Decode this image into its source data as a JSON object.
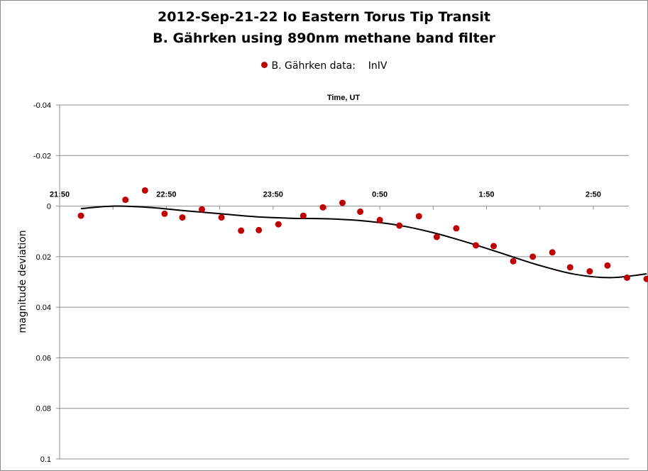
{
  "chart_data": {
    "type": "scatter",
    "title": "2012-Sep-21-22 Io Eastern Torus Tip Transit",
    "subtitle": "B. Gährken using 890nm methane band filter",
    "xlabel": "Time, UT",
    "ylabel": "magnitude deviation",
    "x_tick_labels": [
      "21:50",
      "22:50",
      "23:50",
      "0:50",
      "1:50",
      "2:50"
    ],
    "y_ticks": [
      -0.04,
      -0.02,
      0,
      0.02,
      0.04,
      0.06,
      0.08,
      0.1
    ],
    "y_tick_labels": [
      "-0.04",
      "-0.02",
      "0",
      "0.02",
      "0.04",
      "0.06",
      "0.08",
      "0.1"
    ],
    "ylim": [
      -0.04,
      0.1
    ],
    "y_inverted": true,
    "grid": true,
    "legend_position": "top-center",
    "series": [
      {
        "name": "B. Gährken data:",
        "name_suffix": "InIV",
        "color": "#c00000",
        "marker": "circle",
        "x": [
          "22:02",
          "22:27",
          "22:38",
          "22:49",
          "22:59",
          "23:10",
          "23:21",
          "23:32",
          "23:42",
          "23:53",
          "24:07",
          "24:18",
          "24:29",
          "24:39",
          "24:50",
          "25:01",
          "25:12",
          "25:22",
          "25:33",
          "25:44",
          "25:54",
          "26:05",
          "26:16",
          "26:27",
          "26:37",
          "26:48",
          "26:58",
          "27:09",
          "27:20"
        ],
        "values": [
          0.0038,
          -0.0025,
          -0.0062,
          0.003,
          0.0045,
          0.0013,
          0.0045,
          0.0097,
          0.0095,
          0.0072,
          0.0038,
          0.0005,
          -0.0013,
          0.0022,
          0.0055,
          0.0077,
          0.004,
          0.0122,
          0.0088,
          0.0155,
          0.0158,
          0.0218,
          0.02,
          0.0183,
          0.0242,
          0.0258,
          0.0235,
          0.0283,
          0.0288
        ]
      },
      {
        "type": "line",
        "color": "#000000",
        "x": [
          "22:02",
          "22:20",
          "22:40",
          "23:00",
          "23:20",
          "23:40",
          "24:00",
          "24:20",
          "24:40",
          "25:00",
          "25:20",
          "25:40",
          "26:00",
          "26:20",
          "26:40",
          "27:00",
          "27:20"
        ],
        "values": [
          0.001,
          0.0,
          0.0005,
          0.0018,
          0.003,
          0.0042,
          0.0048,
          0.005,
          0.0058,
          0.0075,
          0.0105,
          0.0145,
          0.019,
          0.0235,
          0.027,
          0.0283,
          0.0268
        ]
      }
    ]
  }
}
